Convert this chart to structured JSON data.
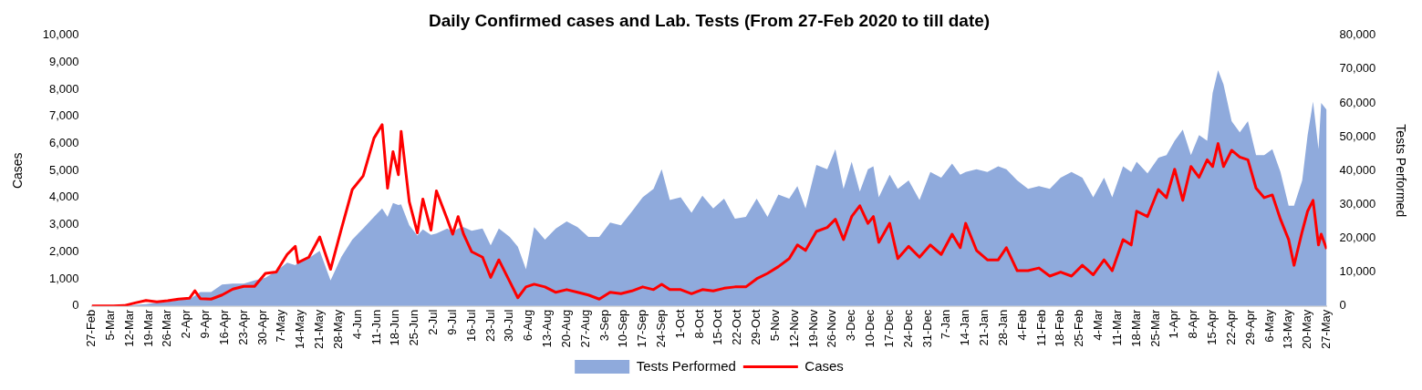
{
  "chart_data": {
    "type": "line",
    "title": "Daily Confirmed cases and Lab. Tests (From 27-Feb 2020 to till date)",
    "ylabel": "Cases",
    "y2label": "Tests Performed",
    "legend": "bottom",
    "grid": false,
    "x": [
      "2020-02-27",
      "2020-03-02",
      "2020-03-06",
      "2020-03-10",
      "2020-03-14",
      "2020-03-18",
      "2020-03-22",
      "2020-03-26",
      "2020-03-30",
      "2020-04-03",
      "2020-04-05",
      "2020-04-07",
      "2020-04-11",
      "2020-04-15",
      "2020-04-19",
      "2020-04-23",
      "2020-04-27",
      "2020-05-01",
      "2020-05-05",
      "2020-05-09",
      "2020-05-12",
      "2020-05-13",
      "2020-05-17",
      "2020-05-21",
      "2020-05-25",
      "2020-05-29",
      "2020-06-02",
      "2020-06-06",
      "2020-06-10",
      "2020-06-13",
      "2020-06-15",
      "2020-06-17",
      "2020-06-19",
      "2020-06-20",
      "2020-06-23",
      "2020-06-26",
      "2020-06-28",
      "2020-07-01",
      "2020-07-03",
      "2020-07-07",
      "2020-07-09",
      "2020-07-11",
      "2020-07-13",
      "2020-07-16",
      "2020-07-20",
      "2020-07-23",
      "2020-07-26",
      "2020-07-30",
      "2020-08-02",
      "2020-08-05",
      "2020-08-08",
      "2020-08-12",
      "2020-08-16",
      "2020-08-20",
      "2020-08-24",
      "2020-08-28",
      "2020-09-01",
      "2020-09-05",
      "2020-09-09",
      "2020-09-13",
      "2020-09-17",
      "2020-09-21",
      "2020-09-24",
      "2020-09-27",
      "2020-10-01",
      "2020-10-05",
      "2020-10-09",
      "2020-10-13",
      "2020-10-17",
      "2020-10-21",
      "2020-10-25",
      "2020-10-29",
      "2020-11-02",
      "2020-11-06",
      "2020-11-10",
      "2020-11-13",
      "2020-11-16",
      "2020-11-20",
      "2020-11-24",
      "2020-11-27",
      "2020-11-30",
      "2020-12-03",
      "2020-12-06",
      "2020-12-09",
      "2020-12-11",
      "2020-12-13",
      "2020-12-17",
      "2020-12-20",
      "2020-12-24",
      "2020-12-28",
      "2021-01-01",
      "2021-01-05",
      "2021-01-09",
      "2021-01-12",
      "2021-01-14",
      "2021-01-18",
      "2021-01-22",
      "2021-01-26",
      "2021-01-29",
      "2021-02-02",
      "2021-02-06",
      "2021-02-10",
      "2021-02-14",
      "2021-02-18",
      "2021-02-22",
      "2021-02-26",
      "2021-03-02",
      "2021-03-06",
      "2021-03-09",
      "2021-03-13",
      "2021-03-16",
      "2021-03-18",
      "2021-03-22",
      "2021-03-26",
      "2021-03-29",
      "2021-04-01",
      "2021-04-04",
      "2021-04-07",
      "2021-04-10",
      "2021-04-13",
      "2021-04-15",
      "2021-04-17",
      "2021-04-19",
      "2021-04-22",
      "2021-04-25",
      "2021-04-28",
      "2021-05-01",
      "2021-05-04",
      "2021-05-07",
      "2021-05-10",
      "2021-05-13",
      "2021-05-15",
      "2021-05-18",
      "2021-05-20",
      "2021-05-22",
      "2021-05-24",
      "2021-05-25",
      "2021-05-27"
    ],
    "series": [
      {
        "name": "Tests Performed",
        "type": "area",
        "axis": "y2",
        "color": "#8faadc",
        "values": [
          0,
          0,
          0,
          0,
          300,
          500,
          1000,
          1200,
          1700,
          2000,
          3000,
          4100,
          4100,
          6300,
          6600,
          6600,
          7500,
          8300,
          10300,
          12800,
          12000,
          12800,
          14100,
          16300,
          7500,
          14500,
          19600,
          22900,
          26300,
          28800,
          26300,
          30400,
          29800,
          30000,
          23800,
          20800,
          22600,
          21000,
          21400,
          22900,
          21800,
          22900,
          23300,
          22200,
          22900,
          17900,
          22900,
          20400,
          17500,
          10800,
          23300,
          19600,
          22900,
          25000,
          23300,
          20400,
          20400,
          24600,
          23800,
          27900,
          32100,
          34600,
          40400,
          31300,
          32100,
          27500,
          32600,
          28800,
          31700,
          25800,
          26300,
          31700,
          26300,
          32900,
          31700,
          35400,
          28800,
          41700,
          40400,
          46300,
          34600,
          42600,
          33800,
          40400,
          41300,
          32100,
          38800,
          34600,
          37100,
          31300,
          39600,
          37900,
          42100,
          38800,
          39600,
          40400,
          39600,
          41300,
          40400,
          37100,
          34600,
          35400,
          34600,
          37900,
          39600,
          37900,
          32100,
          37900,
          32100,
          41300,
          39600,
          42600,
          39200,
          43800,
          44600,
          48800,
          52100,
          44600,
          50500,
          48800,
          63000,
          69700,
          65500,
          54600,
          51300,
          54600,
          44600,
          44600,
          46300,
          39600,
          29600,
          29600,
          37100,
          50500,
          60400,
          46300,
          60000,
          58000
        ]
      },
      {
        "name": "Cases",
        "type": "line",
        "axis": "y",
        "color": "#ff0000",
        "values": [
          0,
          0,
          0,
          10,
          110,
          200,
          150,
          190,
          250,
          280,
          560,
          270,
          250,
          400,
          620,
          720,
          720,
          1200,
          1250,
          1900,
          2200,
          1600,
          1800,
          2550,
          1350,
          2850,
          4300,
          4800,
          6200,
          6700,
          4350,
          5700,
          4850,
          6450,
          3850,
          2700,
          3950,
          2800,
          4250,
          3200,
          2650,
          3300,
          2650,
          2000,
          1800,
          1050,
          1700,
          900,
          300,
          700,
          800,
          700,
          500,
          600,
          500,
          400,
          250,
          500,
          450,
          550,
          700,
          600,
          800,
          600,
          600,
          450,
          600,
          550,
          650,
          700,
          700,
          1000,
          1200,
          1450,
          1750,
          2250,
          2050,
          2750,
          2900,
          3200,
          2450,
          3300,
          3700,
          3050,
          3300,
          2350,
          3050,
          1750,
          2200,
          1800,
          2250,
          1900,
          2650,
          2150,
          3050,
          2050,
          1700,
          1700,
          2150,
          1300,
          1300,
          1400,
          1100,
          1250,
          1100,
          1500,
          1150,
          1700,
          1300,
          2450,
          2250,
          3500,
          3300,
          4300,
          4000,
          5050,
          3900,
          5150,
          4750,
          5400,
          5150,
          6000,
          5150,
          5750,
          5500,
          5400,
          4350,
          4000,
          4100,
          3200,
          2450,
          1500,
          2750,
          3500,
          3900,
          2250,
          2650,
          2100
        ]
      }
    ],
    "xlim": [
      "2020-02-27",
      "2021-05-27"
    ],
    "xticks": [
      {
        "value": "2020-02-27",
        "label": "27-Feb"
      },
      {
        "value": "2020-03-05",
        "label": "5-Mar"
      },
      {
        "value": "2020-03-12",
        "label": "12-Mar"
      },
      {
        "value": "2020-03-19",
        "label": "19-Mar"
      },
      {
        "value": "2020-03-26",
        "label": "26-Mar"
      },
      {
        "value": "2020-04-02",
        "label": "2-Apr"
      },
      {
        "value": "2020-04-09",
        "label": "9-Apr"
      },
      {
        "value": "2020-04-16",
        "label": "16-Apr"
      },
      {
        "value": "2020-04-23",
        "label": "23-Apr"
      },
      {
        "value": "2020-04-30",
        "label": "30-Apr"
      },
      {
        "value": "2020-05-07",
        "label": "7-May"
      },
      {
        "value": "2020-05-14",
        "label": "14-May"
      },
      {
        "value": "2020-05-21",
        "label": "21-May"
      },
      {
        "value": "2020-05-28",
        "label": "28-May"
      },
      {
        "value": "2020-06-04",
        "label": "4-Jun"
      },
      {
        "value": "2020-06-11",
        "label": "11-Jun"
      },
      {
        "value": "2020-06-18",
        "label": "18-Jun"
      },
      {
        "value": "2020-06-25",
        "label": "25-Jun"
      },
      {
        "value": "2020-07-02",
        "label": "2-Jul"
      },
      {
        "value": "2020-07-09",
        "label": "9-Jul"
      },
      {
        "value": "2020-07-16",
        "label": "16-Jul"
      },
      {
        "value": "2020-07-23",
        "label": "23-Jul"
      },
      {
        "value": "2020-07-30",
        "label": "30-Jul"
      },
      {
        "value": "2020-08-06",
        "label": "6-Aug"
      },
      {
        "value": "2020-08-13",
        "label": "13-Aug"
      },
      {
        "value": "2020-08-20",
        "label": "20-Aug"
      },
      {
        "value": "2020-08-27",
        "label": "27-Aug"
      },
      {
        "value": "2020-09-03",
        "label": "3-Sep"
      },
      {
        "value": "2020-09-10",
        "label": "10-Sep"
      },
      {
        "value": "2020-09-17",
        "label": "17-Sep"
      },
      {
        "value": "2020-09-24",
        "label": "24-Sep"
      },
      {
        "value": "2020-10-01",
        "label": "1-Oct"
      },
      {
        "value": "2020-10-08",
        "label": "8-Oct"
      },
      {
        "value": "2020-10-15",
        "label": "15-Oct"
      },
      {
        "value": "2020-10-22",
        "label": "22-Oct"
      },
      {
        "value": "2020-10-29",
        "label": "29-Oct"
      },
      {
        "value": "2020-11-05",
        "label": "5-Nov"
      },
      {
        "value": "2020-11-12",
        "label": "12-Nov"
      },
      {
        "value": "2020-11-19",
        "label": "19-Nov"
      },
      {
        "value": "2020-11-26",
        "label": "26-Nov"
      },
      {
        "value": "2020-12-03",
        "label": "3-Dec"
      },
      {
        "value": "2020-12-10",
        "label": "10-Dec"
      },
      {
        "value": "2020-12-17",
        "label": "17-Dec"
      },
      {
        "value": "2020-12-24",
        "label": "24-Dec"
      },
      {
        "value": "2020-12-31",
        "label": "31-Dec"
      },
      {
        "value": "2021-01-07",
        "label": "7-Jan"
      },
      {
        "value": "2021-01-14",
        "label": "14-Jan"
      },
      {
        "value": "2021-01-21",
        "label": "21-Jan"
      },
      {
        "value": "2021-01-28",
        "label": "28-Jan"
      },
      {
        "value": "2021-02-04",
        "label": "4-Feb"
      },
      {
        "value": "2021-02-11",
        "label": "11-Feb"
      },
      {
        "value": "2021-02-18",
        "label": "18-Feb"
      },
      {
        "value": "2021-02-25",
        "label": "25-Feb"
      },
      {
        "value": "2021-03-04",
        "label": "4-Mar"
      },
      {
        "value": "2021-03-11",
        "label": "11-Mar"
      },
      {
        "value": "2021-03-18",
        "label": "18-Mar"
      },
      {
        "value": "2021-03-25",
        "label": "25-Mar"
      },
      {
        "value": "2021-04-01",
        "label": "1-Apr"
      },
      {
        "value": "2021-04-08",
        "label": "8-Apr"
      },
      {
        "value": "2021-04-15",
        "label": "15-Apr"
      },
      {
        "value": "2021-04-22",
        "label": "22-Apr"
      },
      {
        "value": "2021-04-29",
        "label": "29-Apr"
      },
      {
        "value": "2021-05-06",
        "label": "6-May"
      },
      {
        "value": "2021-05-13",
        "label": "13-May"
      },
      {
        "value": "2021-05-20",
        "label": "20-May"
      },
      {
        "value": "2021-05-27",
        "label": "27-May"
      }
    ],
    "ylim": [
      0,
      10000
    ],
    "yticks": [
      0,
      {
        "value": 1000,
        "label": "1,000"
      },
      {
        "value": 2000,
        "label": "2,000"
      },
      {
        "value": 3000,
        "label": "3,000"
      },
      {
        "value": 4000,
        "label": "4,000"
      },
      {
        "value": 5000,
        "label": "5,000"
      },
      {
        "value": 6000,
        "label": "6,000"
      },
      {
        "value": 7000,
        "label": "7,000"
      },
      {
        "value": 8000,
        "label": "8,000"
      },
      {
        "value": 9000,
        "label": "9,000"
      },
      {
        "value": 10000,
        "label": "10,000"
      }
    ],
    "y2lim": [
      0,
      80000
    ],
    "y2ticks": [
      0,
      {
        "value": 10000,
        "label": "10,000"
      },
      {
        "value": 20000,
        "label": "20,000"
      },
      {
        "value": 30000,
        "label": "30,000"
      },
      {
        "value": 40000,
        "label": "40,000"
      },
      {
        "value": 50000,
        "label": "50,000"
      },
      {
        "value": 60000,
        "label": "60,000"
      },
      {
        "value": 70000,
        "label": "70,000"
      },
      {
        "value": 80000,
        "label": "80,000"
      }
    ]
  }
}
